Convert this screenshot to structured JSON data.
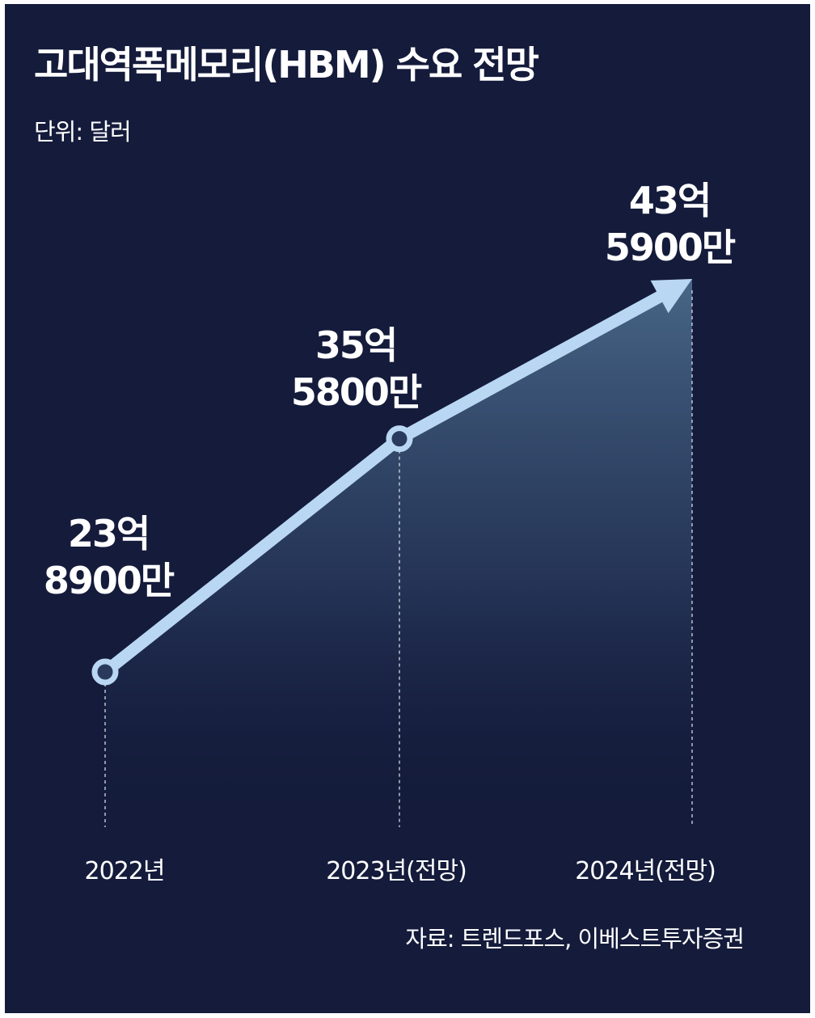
{
  "header": {
    "title": "고대역폭메모리(HBM) 수요 전망",
    "unit": "단위: 달러"
  },
  "source": "자료: 트렌드포스, 이베스트투자증권",
  "colors": {
    "background": "#141b3b",
    "line": "#b9d7f3",
    "area": "#44607f",
    "text": "#ffffff"
  },
  "chart_data": {
    "type": "line",
    "unit": "달러",
    "categories": [
      "2022년",
      "2023년(전망)",
      "2024년(전망)"
    ],
    "values": [
      2389000000,
      3558000000,
      4359000000
    ],
    "value_labels": [
      [
        "23억",
        "8900만"
      ],
      [
        "35억",
        "5800만"
      ],
      [
        "43억",
        "5900만"
      ]
    ],
    "last_point_arrow": true,
    "area_fill": true,
    "gridlines": false,
    "legend": "none"
  }
}
